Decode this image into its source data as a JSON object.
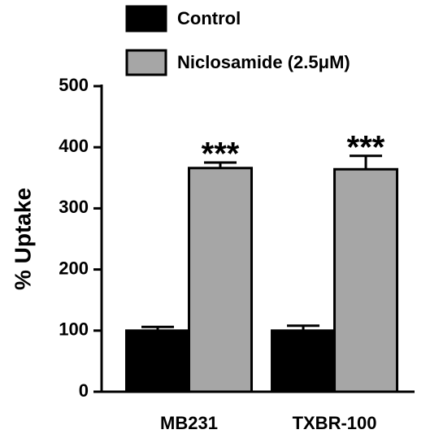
{
  "chart_data": {
    "type": "bar",
    "y_label": "% Uptake",
    "categories": [
      "MB231",
      "TXBR-100"
    ],
    "series": [
      {
        "name": "Control",
        "color": "#000000",
        "values": [
          100,
          100
        ],
        "errors": [
          6,
          8
        ]
      },
      {
        "name": "Niclosamide (2.5μM)",
        "color": "#a6a6a6",
        "values": [
          366,
          364
        ],
        "errors": [
          9,
          22
        ],
        "annotations": [
          "***",
          "***"
        ]
      }
    ],
    "ylim": [
      0,
      500
    ],
    "yticks": [
      0,
      100,
      200,
      300,
      400,
      500
    ],
    "grid": false
  }
}
